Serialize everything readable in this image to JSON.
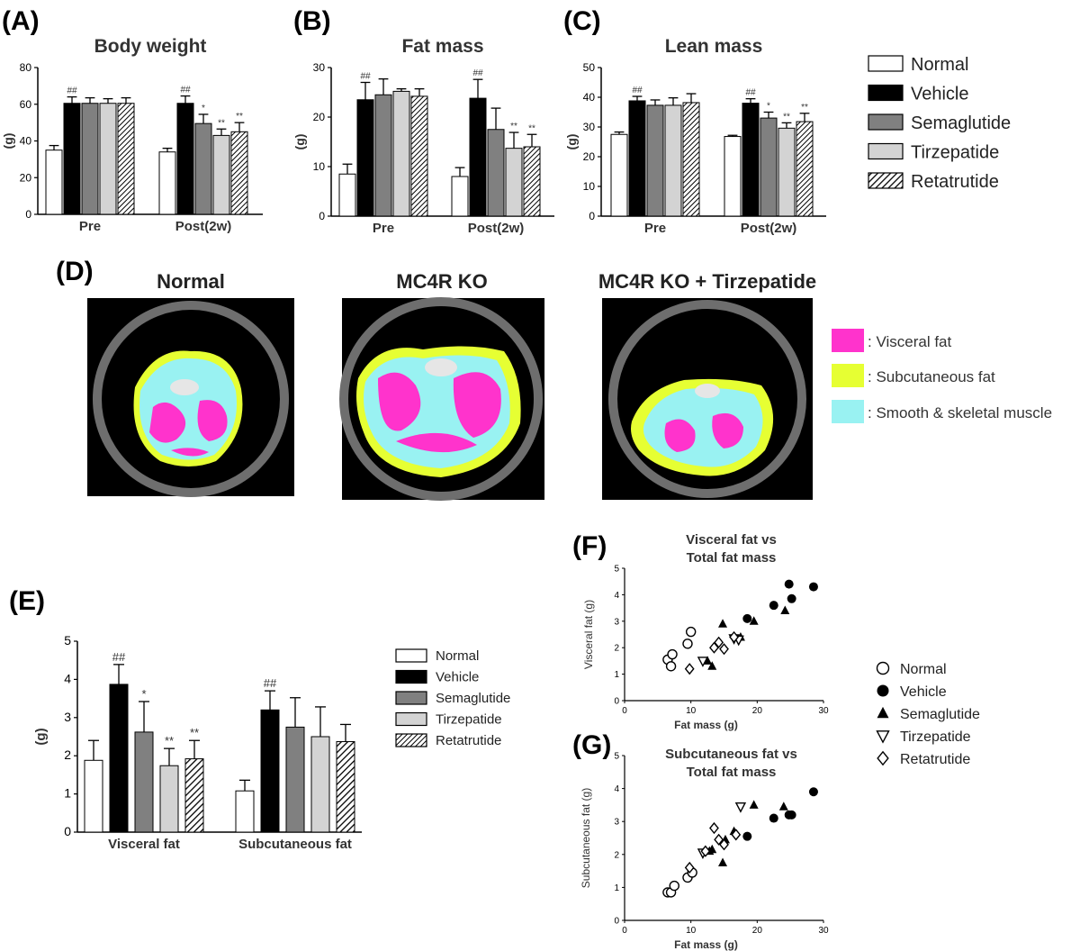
{
  "panels": {
    "A": "(A)",
    "B": "(B)",
    "C": "(C)",
    "D": "(D)",
    "E": "(E)",
    "F": "(F)",
    "G": "(G)"
  },
  "groups": [
    {
      "name": "Normal",
      "fill": "#ffffff",
      "hatch": false
    },
    {
      "name": "Vehicle",
      "fill": "#000000",
      "hatch": false
    },
    {
      "name": "Semaglutide",
      "fill": "#808080",
      "hatch": false
    },
    {
      "name": "Tirzepatide",
      "fill": "#d3d3d3",
      "hatch": false
    },
    {
      "name": "Retatrutide",
      "fill": "#ffffff",
      "hatch": true
    }
  ],
  "ct": {
    "titles": [
      "Normal",
      "MC4R KO",
      "MC4R KO + Tirzepatide"
    ],
    "legend": [
      {
        "label": ": Visceral fat",
        "color": "#ff33cc"
      },
      {
        "label": ": Subcutaneous fat",
        "color": "#e6ff33"
      },
      {
        "label": ": Smooth & skeletal muscle",
        "color": "#99f2f2"
      }
    ]
  },
  "chart_data": [
    {
      "id": "A",
      "type": "bar",
      "title": "Body weight",
      "ylabel": "(g)",
      "ylim": [
        0,
        80
      ],
      "yticks": [
        0,
        20,
        40,
        60,
        80
      ],
      "categories": [
        "Pre",
        "Post(2w)"
      ],
      "series": [
        {
          "name": "Normal",
          "values": [
            35,
            34
          ],
          "errors": [
            2.5,
            2
          ]
        },
        {
          "name": "Vehicle",
          "values": [
            60.5,
            60.5
          ],
          "errors": [
            3.5,
            4
          ]
        },
        {
          "name": "Semaglutide",
          "values": [
            60.5,
            49.5
          ],
          "errors": [
            3,
            5
          ]
        },
        {
          "name": "Tirzepatide",
          "values": [
            60.5,
            43
          ],
          "errors": [
            2.5,
            3.5
          ]
        },
        {
          "name": "Retatrutide",
          "values": [
            60.5,
            45
          ],
          "errors": [
            3,
            5
          ]
        }
      ],
      "annotations": [
        [
          "",
          "##",
          "",
          "",
          ""
        ],
        [
          "",
          "##",
          "*",
          "**",
          "**"
        ]
      ]
    },
    {
      "id": "B",
      "type": "bar",
      "title": "Fat mass",
      "ylabel": "(g)",
      "ylim": [
        0,
        30
      ],
      "yticks": [
        0,
        10,
        20,
        30
      ],
      "categories": [
        "Pre",
        "Post(2w)"
      ],
      "series": [
        {
          "name": "Normal",
          "values": [
            8.5,
            8
          ],
          "errors": [
            2,
            1.8
          ]
        },
        {
          "name": "Vehicle",
          "values": [
            23.5,
            23.8
          ],
          "errors": [
            3.5,
            3.8
          ]
        },
        {
          "name": "Semaglutide",
          "values": [
            24.5,
            17.5
          ],
          "errors": [
            3.2,
            4.3
          ]
        },
        {
          "name": "Tirzepatide",
          "values": [
            25.2,
            13.7
          ],
          "errors": [
            0.5,
            3.2
          ]
        },
        {
          "name": "Retatrutide",
          "values": [
            24.2,
            14
          ],
          "errors": [
            1.5,
            2.5
          ]
        }
      ],
      "annotations": [
        [
          "",
          "##",
          "",
          "",
          ""
        ],
        [
          "",
          "##",
          "",
          "**",
          "**"
        ]
      ]
    },
    {
      "id": "C",
      "type": "bar",
      "title": "Lean mass",
      "ylabel": "(g)",
      "ylim": [
        0,
        50
      ],
      "yticks": [
        0,
        10,
        20,
        30,
        40,
        50
      ],
      "categories": [
        "Pre",
        "Post(2w)"
      ],
      "series": [
        {
          "name": "Normal",
          "values": [
            27.5,
            26.8
          ],
          "errors": [
            0.8,
            0.4
          ]
        },
        {
          "name": "Vehicle",
          "values": [
            38.8,
            38
          ],
          "errors": [
            1.5,
            1.5
          ]
        },
        {
          "name": "Semaglutide",
          "values": [
            37.3,
            33
          ],
          "errors": [
            1.8,
            2
          ]
        },
        {
          "name": "Tirzepatide",
          "values": [
            37.3,
            29.6
          ],
          "errors": [
            2.5,
            1.8
          ]
        },
        {
          "name": "Retatrutide",
          "values": [
            38.2,
            31.8
          ],
          "errors": [
            3,
            2.8
          ]
        }
      ],
      "annotations": [
        [
          "",
          "##",
          "",
          "",
          ""
        ],
        [
          "",
          "##",
          "*",
          "**",
          "**"
        ]
      ]
    },
    {
      "id": "E",
      "type": "bar",
      "title": "",
      "ylabel": "(g)",
      "ylim": [
        0,
        5
      ],
      "yticks": [
        0,
        1,
        2,
        3,
        4,
        5
      ],
      "categories": [
        "Visceral  fat",
        "Subcutaneous fat"
      ],
      "series": [
        {
          "name": "Normal",
          "values": [
            1.88,
            1.08
          ],
          "errors": [
            0.52,
            0.28
          ]
        },
        {
          "name": "Vehicle",
          "values": [
            3.87,
            3.2
          ],
          "errors": [
            0.52,
            0.5
          ]
        },
        {
          "name": "Semaglutide",
          "values": [
            2.62,
            2.75
          ],
          "errors": [
            0.8,
            0.77
          ]
        },
        {
          "name": "Tirzepatide",
          "values": [
            1.74,
            2.5
          ],
          "errors": [
            0.45,
            0.78
          ]
        },
        {
          "name": "Retatrutide",
          "values": [
            1.92,
            2.37
          ],
          "errors": [
            0.48,
            0.45
          ]
        }
      ],
      "annotations": [
        [
          "",
          "##",
          "*",
          "**",
          "**"
        ],
        [
          "",
          "##",
          "",
          "",
          ""
        ]
      ]
    },
    {
      "id": "F",
      "type": "scatter",
      "title": [
        "Visceral fat vs",
        "Total fat mass"
      ],
      "xlabel": "Fat mass (g)",
      "ylabel": "Visceral fat (g)",
      "xlim": [
        0,
        30
      ],
      "ylim": [
        0,
        5
      ],
      "xticks": [
        0,
        10,
        20,
        30
      ],
      "yticks": [
        0,
        1,
        2,
        3,
        4,
        5
      ],
      "series": [
        {
          "name": "Normal",
          "points": [
            [
              6.5,
              1.55
            ],
            [
              7.2,
              1.75
            ],
            [
              7.0,
              1.3
            ],
            [
              9.5,
              2.15
            ],
            [
              10.0,
              2.6
            ]
          ]
        },
        {
          "name": "Vehicle",
          "points": [
            [
              18.5,
              3.1
            ],
            [
              22.5,
              3.6
            ],
            [
              24.8,
              4.4
            ],
            [
              25.2,
              3.85
            ],
            [
              28.5,
              4.3
            ]
          ]
        },
        {
          "name": "Semaglutide",
          "points": [
            [
              12.5,
              1.5
            ],
            [
              13.2,
              1.3
            ],
            [
              14.8,
              2.9
            ],
            [
              17.5,
              2.4
            ],
            [
              19.5,
              3.0
            ],
            [
              24.2,
              3.4
            ]
          ]
        },
        {
          "name": "Tirzepatide",
          "points": [
            [
              11.8,
              1.5
            ],
            [
              16.5,
              2.35
            ],
            [
              17.2,
              2.3
            ]
          ]
        },
        {
          "name": "Retatrutide",
          "points": [
            [
              9.8,
              1.2
            ],
            [
              13.5,
              2.0
            ],
            [
              14.2,
              2.2
            ],
            [
              15.0,
              1.95
            ],
            [
              16.5,
              2.4
            ]
          ]
        }
      ]
    },
    {
      "id": "G",
      "type": "scatter",
      "title": [
        "Subcutaneous fat vs",
        "Total fat mass"
      ],
      "xlabel": "Fat mass (g)",
      "ylabel": "Subcutaneous fat (g)",
      "xlim": [
        0,
        30
      ],
      "ylim": [
        0,
        5
      ],
      "xticks": [
        0,
        10,
        20,
        30
      ],
      "yticks": [
        0,
        1,
        2,
        3,
        4,
        5
      ],
      "series": [
        {
          "name": "Normal",
          "points": [
            [
              6.5,
              0.85
            ],
            [
              7.0,
              0.85
            ],
            [
              7.5,
              1.05
            ],
            [
              9.5,
              1.3
            ],
            [
              10.2,
              1.45
            ]
          ]
        },
        {
          "name": "Vehicle",
          "points": [
            [
              18.5,
              2.55
            ],
            [
              22.5,
              3.1
            ],
            [
              24.8,
              3.2
            ],
            [
              25.2,
              3.2
            ],
            [
              28.5,
              3.9
            ]
          ]
        },
        {
          "name": "Semaglutide",
          "points": [
            [
              12.8,
              2.1
            ],
            [
              13.2,
              2.15
            ],
            [
              14.8,
              1.75
            ],
            [
              15.2,
              2.45
            ],
            [
              16.5,
              2.7
            ],
            [
              19.5,
              3.5
            ],
            [
              24.0,
              3.45
            ]
          ]
        },
        {
          "name": "Tirzepatide",
          "points": [
            [
              11.8,
              2.05
            ],
            [
              17.5,
              3.45
            ]
          ]
        },
        {
          "name": "Retatrutide",
          "points": [
            [
              9.8,
              1.6
            ],
            [
              12.2,
              2.1
            ],
            [
              13.5,
              2.8
            ],
            [
              14.2,
              2.45
            ],
            [
              15.0,
              2.3
            ],
            [
              16.8,
              2.6
            ]
          ]
        }
      ]
    }
  ]
}
